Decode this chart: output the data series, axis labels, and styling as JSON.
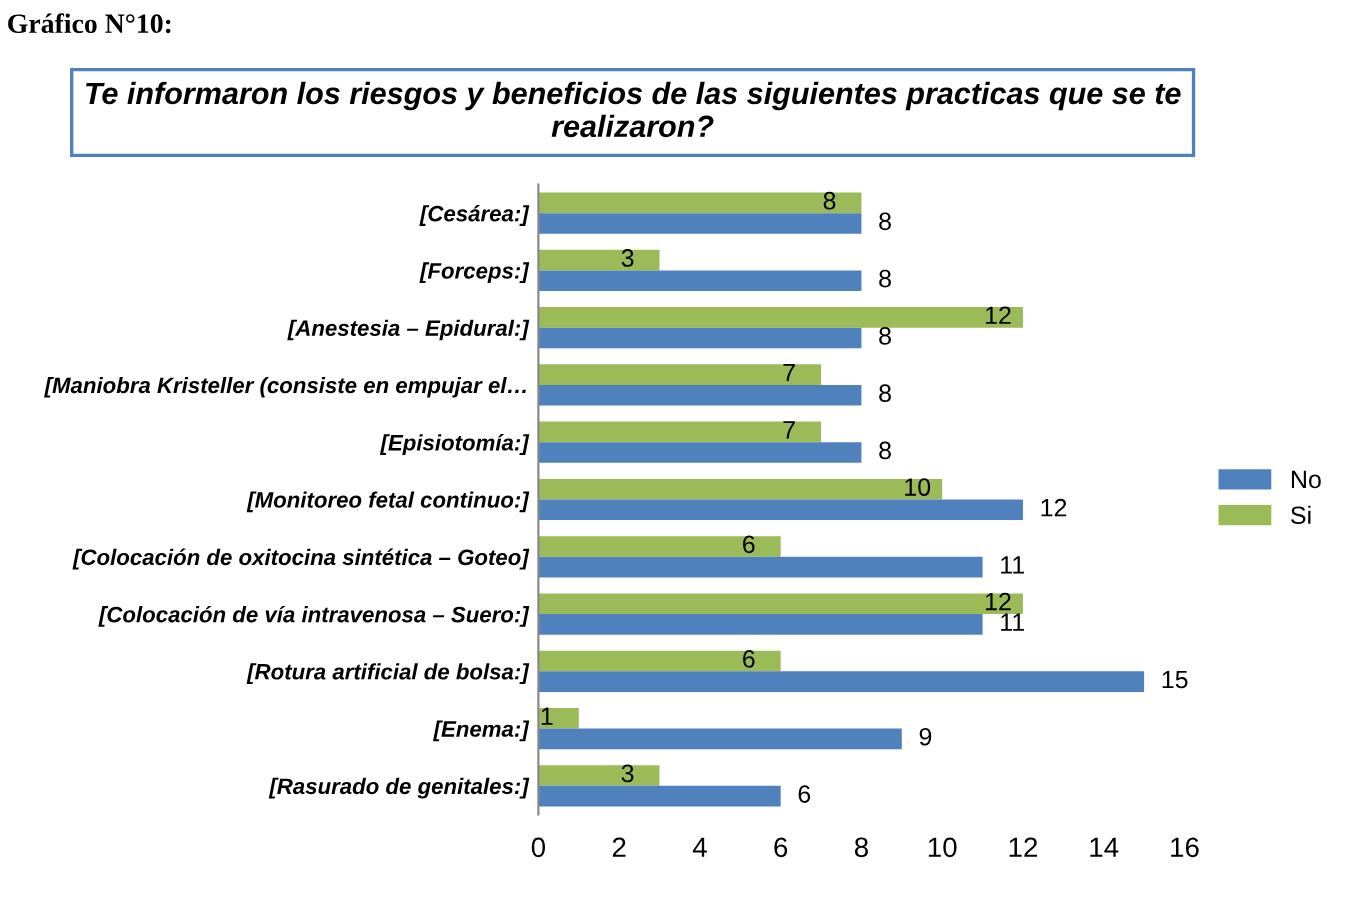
{
  "chart_data": {
    "type": "bar",
    "orientation": "horizontal",
    "title": "Te informaron los riesgos y beneficios de las siguientes practicas que se te realizaron?",
    "annotations": [
      "Gráfico N°10:"
    ],
    "categories": [
      "[Cesárea:]",
      "[Forceps:]",
      "[Anestesia – Epidural:]",
      "[Maniobra Kristeller (consiste en empujar el…",
      "[Episiotomía:]",
      "[Monitoreo fetal continuo:]",
      "[Colocación de oxitocina sintética – Goteo]",
      "[Colocación de vía intravenosa – Suero:]",
      "[Rotura artificial de bolsa:]",
      "[Enema:]",
      "[Rasurado de genitales:]"
    ],
    "series": [
      {
        "name": "Si",
        "color": "#9bbb59",
        "values": [
          8,
          3,
          12,
          7,
          7,
          10,
          6,
          12,
          6,
          1,
          3
        ]
      },
      {
        "name": "No",
        "color": "#4f81bd",
        "values": [
          8,
          8,
          8,
          8,
          8,
          12,
          11,
          11,
          15,
          9,
          6
        ]
      }
    ],
    "xlim": [
      0,
      16
    ],
    "xticks": [
      0,
      2,
      4,
      6,
      8,
      10,
      12,
      14,
      16
    ],
    "data_labels": true,
    "legend": "right",
    "grid": false
  }
}
